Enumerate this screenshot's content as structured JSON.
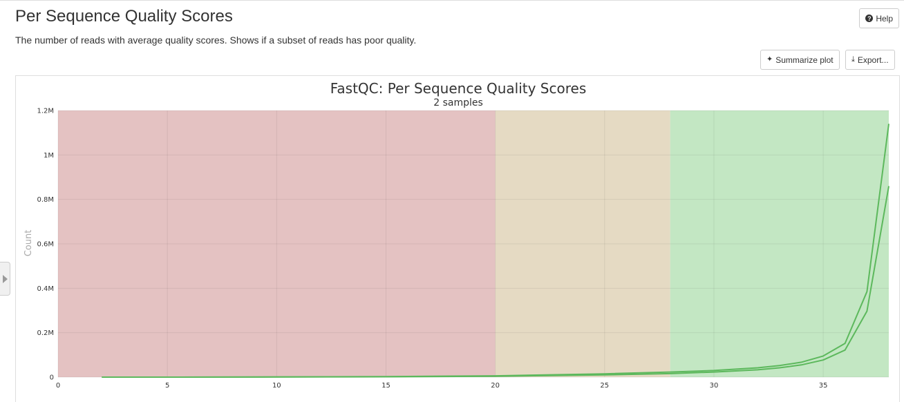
{
  "header": {
    "title": "Per Sequence Quality Scores",
    "description": "The number of reads with average quality scores. Shows if a subset of reads has poor quality.",
    "help_label": "Help",
    "summarize_label": "Summarize plot",
    "export_label": "Export..."
  },
  "chart_data": {
    "type": "line",
    "title": "FastQC: Per Sequence Quality Scores",
    "subtitle": "2 samples",
    "xlabel": "",
    "ylabel": "Count",
    "xlim": [
      0,
      38
    ],
    "ylim": [
      0,
      1200000
    ],
    "x_ticks": [
      0,
      5,
      10,
      15,
      20,
      25,
      30,
      35
    ],
    "y_ticks": [
      {
        "value": 0,
        "label": "0"
      },
      {
        "value": 200000,
        "label": "0.2M"
      },
      {
        "value": 400000,
        "label": "0.4M"
      },
      {
        "value": 600000,
        "label": "0.6M"
      },
      {
        "value": 800000,
        "label": "0.8M"
      },
      {
        "value": 1000000,
        "label": "1M"
      },
      {
        "value": 1200000,
        "label": "1.2M"
      }
    ],
    "grid": true,
    "bands": [
      {
        "from": 0,
        "to": 20,
        "color": "#e4c2c2"
      },
      {
        "from": 20,
        "to": 28,
        "color": "#e5dac3"
      },
      {
        "from": 28,
        "to": 38,
        "color": "#c3e7c3"
      }
    ],
    "line_color": "#5cb85c",
    "series": [
      {
        "points": [
          [
            2,
            0
          ],
          [
            5,
            0
          ],
          [
            10,
            500
          ],
          [
            15,
            1500
          ],
          [
            20,
            4000
          ],
          [
            25,
            10000
          ],
          [
            28,
            16000
          ],
          [
            30,
            23000
          ],
          [
            32,
            33000
          ],
          [
            33,
            42000
          ],
          [
            34,
            55000
          ],
          [
            35,
            77000
          ],
          [
            36,
            122000
          ],
          [
            37,
            297000
          ],
          [
            38,
            860000
          ]
        ]
      },
      {
        "points": [
          [
            2,
            0
          ],
          [
            5,
            0
          ],
          [
            10,
            800
          ],
          [
            15,
            2500
          ],
          [
            20,
            6000
          ],
          [
            25,
            15000
          ],
          [
            28,
            23000
          ],
          [
            30,
            30000
          ],
          [
            32,
            42000
          ],
          [
            33,
            52000
          ],
          [
            34,
            67000
          ],
          [
            35,
            95000
          ],
          [
            36,
            152000
          ],
          [
            37,
            385000
          ],
          [
            38,
            1140000
          ]
        ]
      }
    ]
  }
}
